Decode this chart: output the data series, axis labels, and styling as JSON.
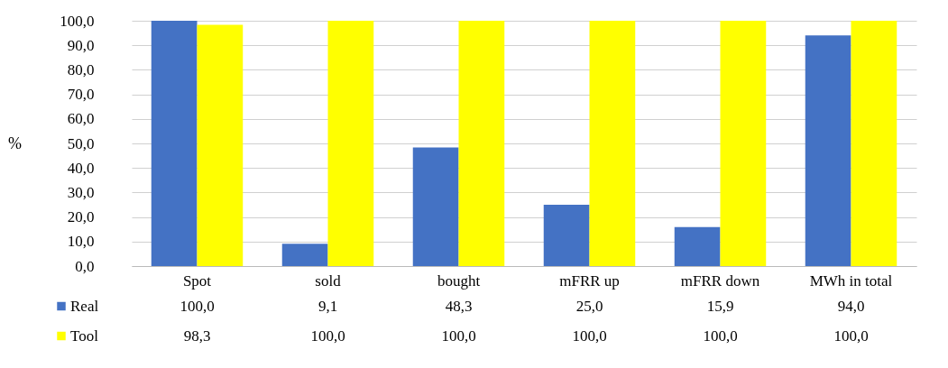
{
  "chart_data": {
    "type": "bar",
    "ylabel": "%",
    "categories": [
      "Spot",
      "sold",
      "bought",
      "mFRR up",
      "mFRR down",
      "MWh in total"
    ],
    "series": [
      {
        "name": "Real",
        "color": "#4472c4",
        "values": [
          100,
          9.1,
          48.3,
          25,
          15.9,
          94
        ],
        "value_labels": [
          "100,0",
          "9,1",
          "48,3",
          "25,0",
          "15,9",
          "94,0"
        ]
      },
      {
        "name": "Tool",
        "color": "#ffff00",
        "values": [
          98.3,
          100,
          100,
          100,
          100,
          100
        ],
        "value_labels": [
          "98,3",
          "100,0",
          "100,0",
          "100,0",
          "100,0",
          "100,0"
        ]
      }
    ],
    "ylim": [
      0,
      100
    ],
    "yticks": [
      {
        "value": 0,
        "label": "0,0"
      },
      {
        "value": 10,
        "label": "10,0"
      },
      {
        "value": 20,
        "label": "20,0"
      },
      {
        "value": 30,
        "label": "30,0"
      },
      {
        "value": 40,
        "label": "40,0"
      },
      {
        "value": 50,
        "label": "50,0"
      },
      {
        "value": 60,
        "label": "60,0"
      },
      {
        "value": 70,
        "label": "70,0"
      },
      {
        "value": 80,
        "label": "80,0"
      },
      {
        "value": 90,
        "label": "90,0"
      },
      {
        "value": 100,
        "label": "100,0"
      }
    ],
    "grid": "y",
    "legend": "bottom"
  }
}
